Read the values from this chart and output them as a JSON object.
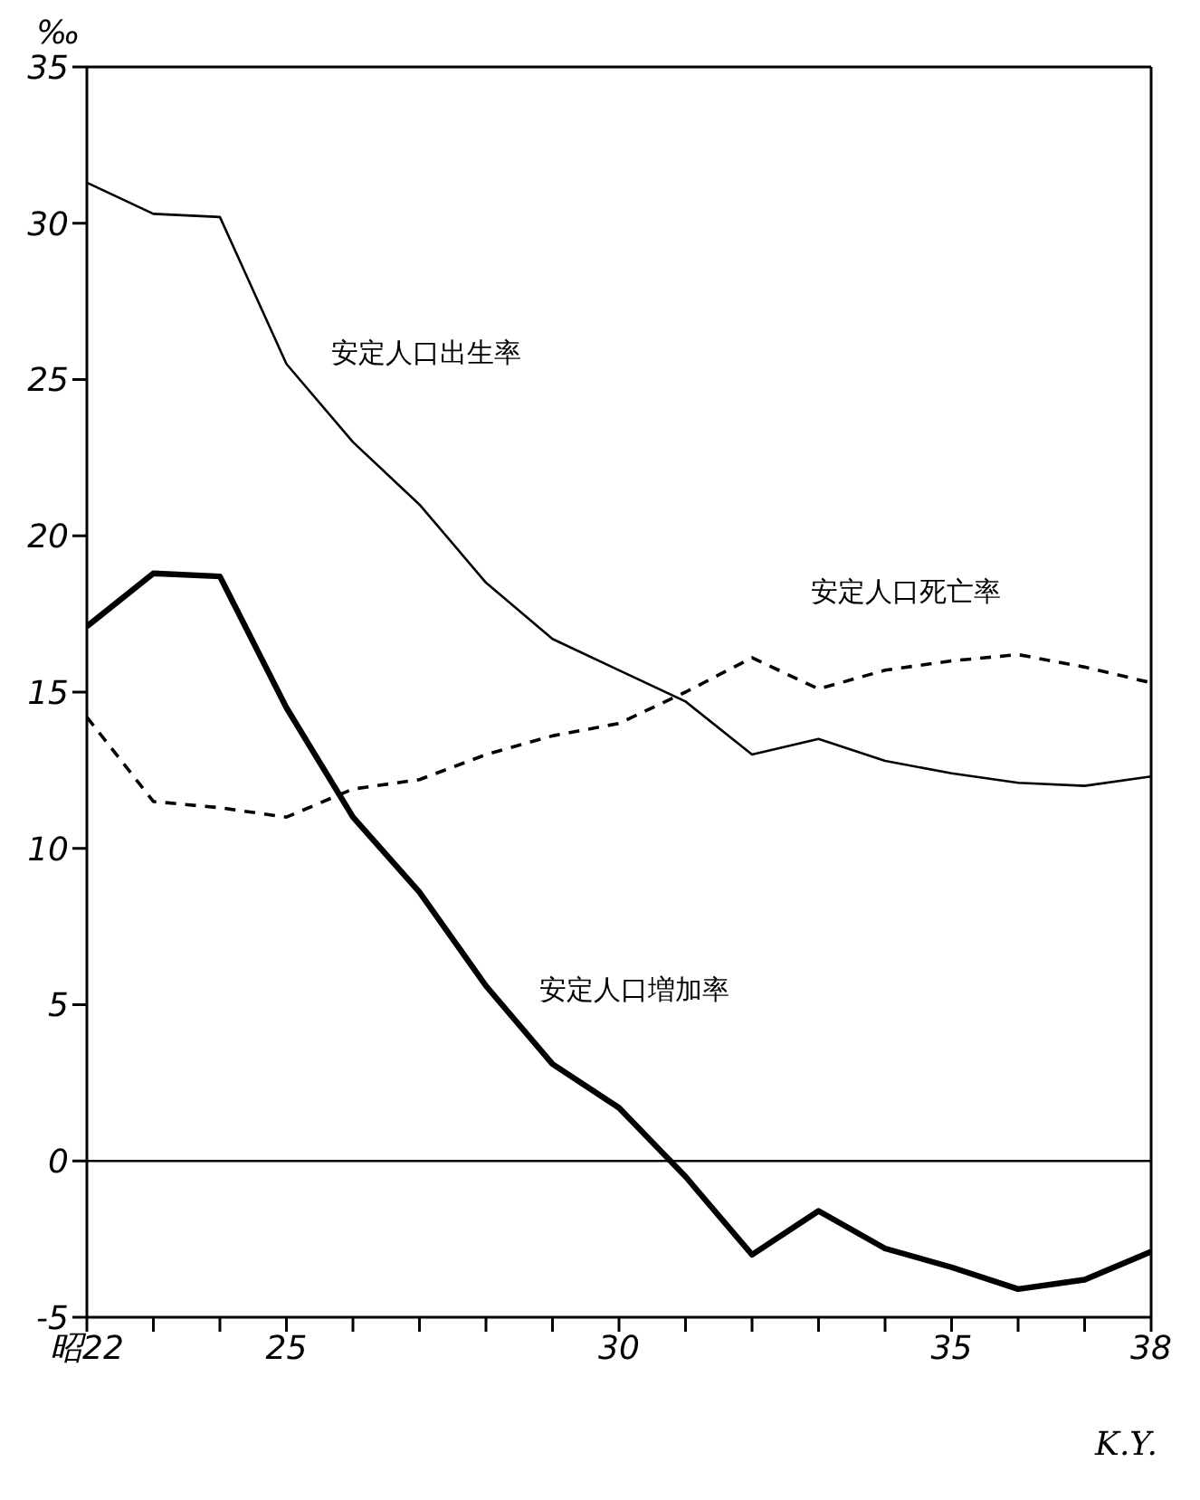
{
  "chart_data": {
    "type": "line",
    "ylabel": "‰",
    "annotations": [
      "K.Y."
    ],
    "x": [
      22,
      23,
      24,
      25,
      26,
      27,
      28,
      29,
      30,
      31,
      32,
      33,
      34,
      35,
      36,
      37,
      38
    ],
    "series": [
      {
        "name": "安定人口出生率",
        "color": "#000000",
        "line_style": "solid",
        "values": [
          31.3,
          30.3,
          30.2,
          25.5,
          23.0,
          21.0,
          18.5,
          16.7,
          15.7,
          14.7,
          13.0,
          13.5,
          12.8,
          12.4,
          12.1,
          12.0,
          12.3
        ]
      },
      {
        "name": "安定人口死亡率",
        "color": "#000000",
        "line_style": "dashed",
        "values": [
          14.2,
          11.5,
          11.3,
          11.0,
          11.9,
          12.2,
          13.0,
          13.6,
          14.0,
          15.0,
          16.1,
          15.1,
          15.7,
          16.0,
          16.2,
          15.8,
          15.3
        ]
      },
      {
        "name": "安定人口増加率",
        "color": "#000000",
        "line_style": "solid",
        "values": [
          17.1,
          18.8,
          18.7,
          14.5,
          11.0,
          8.6,
          5.6,
          3.1,
          1.7,
          -0.5,
          -3.0,
          -1.6,
          -2.8,
          -3.4,
          -4.1,
          -3.8,
          -2.9
        ]
      }
    ],
    "xlim": [
      22,
      38
    ],
    "xticks": [
      {
        "value": 22,
        "label": "昭22"
      },
      {
        "value": 23,
        "label": null
      },
      {
        "value": 24,
        "label": null
      },
      25,
      {
        "value": 26,
        "label": null
      },
      {
        "value": 27,
        "label": null
      },
      {
        "value": 28,
        "label": null
      },
      {
        "value": 29,
        "label": null
      },
      30,
      {
        "value": 31,
        "label": null
      },
      {
        "value": 32,
        "label": null
      },
      {
        "value": 33,
        "label": null
      },
      {
        "value": 34,
        "label": null
      },
      35,
      {
        "value": 36,
        "label": null
      },
      {
        "value": 37,
        "label": null
      },
      38
    ],
    "ylim": [
      -5,
      35
    ],
    "yticks": [
      -5,
      0,
      5,
      10,
      15,
      20,
      25,
      30,
      35
    ],
    "ref_lines": [
      {
        "axis": "y",
        "value": 0,
        "color": "#000000",
        "line_style": "solid"
      }
    ],
    "marker": "none"
  }
}
